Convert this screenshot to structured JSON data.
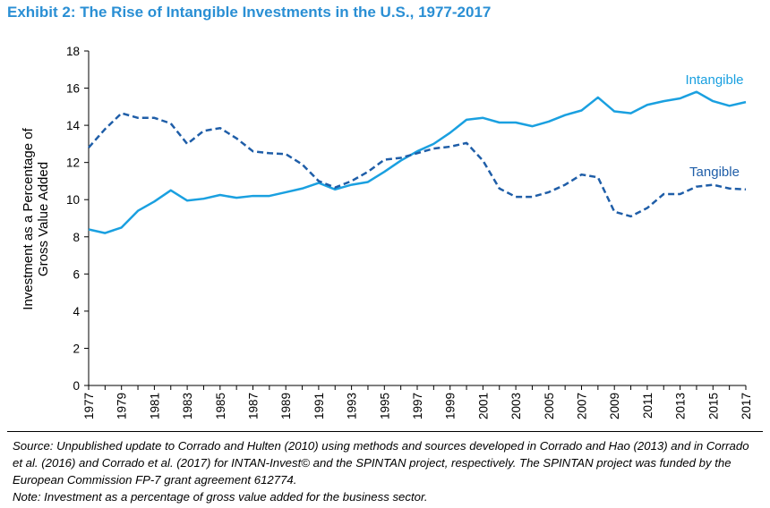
{
  "title": "Exhibit 2: The Rise of Intangible Investments in the U.S., 1977-2017",
  "source_text": "Source: Unpublished update to Corrado and Hulten (2010) using methods and sources developed in Corrado and Hao (2013) and in Corrado et al. (2016) and Corrado et al. (2017) for INTAN-Invest© and the SPINTAN project, respectively. The SPINTAN project was funded by the European Commission FP-7 grant agreement 612774.",
  "note_text": "Note: Investment as a percentage of gross value added for the business sector.",
  "colors": {
    "title": "#2a8fd4",
    "intangible": "#1aa0e0",
    "tangible": "#1f5ea8"
  },
  "chart_data": {
    "type": "line",
    "ylabel": [
      "Investment as a Percentage of",
      "Gross Value Added"
    ],
    "xlabel": "",
    "xlim": [
      1977,
      2017
    ],
    "ylim": [
      0,
      18
    ],
    "yticks": [
      "0",
      "2",
      "4",
      "6",
      "8",
      "10",
      "12",
      "14",
      "16",
      "18"
    ],
    "xticks": [
      "1977",
      "1979",
      "1981",
      "1983",
      "1985",
      "1987",
      "1989",
      "1991",
      "1993",
      "1995",
      "1997",
      "1999",
      "2001",
      "2003",
      "2005",
      "2007",
      "2009",
      "2011",
      "2013",
      "2015",
      "2017"
    ],
    "grid": false,
    "legend": "inline labels",
    "x": [
      1977,
      1978,
      1979,
      1980,
      1981,
      1982,
      1983,
      1984,
      1985,
      1986,
      1987,
      1988,
      1989,
      1990,
      1991,
      1992,
      1993,
      1994,
      1995,
      1996,
      1997,
      1998,
      1999,
      2000,
      2001,
      2002,
      2003,
      2004,
      2005,
      2006,
      2007,
      2008,
      2009,
      2010,
      2011,
      2012,
      2013,
      2014,
      2015,
      2016,
      2017
    ],
    "series": [
      {
        "name": "Intangible",
        "style": "solid",
        "values": [
          8.4,
          8.2,
          8.5,
          9.4,
          9.9,
          10.5,
          9.95,
          10.05,
          10.25,
          10.1,
          10.2,
          10.2,
          10.4,
          10.6,
          10.9,
          10.55,
          10.8,
          10.95,
          11.5,
          12.1,
          12.6,
          13.0,
          13.6,
          14.3,
          14.4,
          14.15,
          14.15,
          13.95,
          14.2,
          14.55,
          14.8,
          15.5,
          14.75,
          14.65,
          15.1,
          15.3,
          15.45,
          15.8,
          15.3,
          15.05,
          15.25
        ]
      },
      {
        "name": "Tangible",
        "style": "dashed",
        "values": [
          12.8,
          13.8,
          14.65,
          14.4,
          14.4,
          14.1,
          13.0,
          13.7,
          13.85,
          13.3,
          12.6,
          12.5,
          12.45,
          11.9,
          11.0,
          10.65,
          11.0,
          11.5,
          12.15,
          12.25,
          12.5,
          12.75,
          12.85,
          13.05,
          12.1,
          10.6,
          10.15,
          10.15,
          10.4,
          10.8,
          11.35,
          11.2,
          9.35,
          9.1,
          9.55,
          10.3,
          10.3,
          10.7,
          10.8,
          10.6,
          10.55
        ]
      }
    ]
  }
}
